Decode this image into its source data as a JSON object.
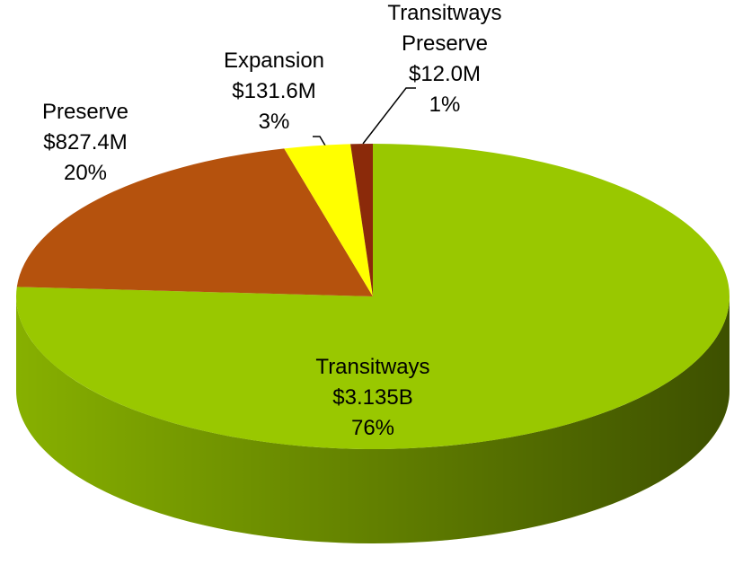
{
  "chart_data": {
    "type": "pie",
    "categories": [
      "Transitways",
      "Preserve",
      "Expansion",
      "Transitways Preserve"
    ],
    "values": [
      76,
      20,
      3,
      1
    ],
    "value_labels": [
      "76%",
      "20%",
      "3%",
      "1%"
    ],
    "amounts": [
      3135,
      827.4,
      131.6,
      12.0
    ],
    "amount_labels": [
      "$3.135B",
      "$827.4M",
      "$131.6M",
      "$12.0M"
    ],
    "colors": [
      "#99c800",
      "#b5520d",
      "#ffff00",
      "#8b2a0a"
    ]
  }
}
